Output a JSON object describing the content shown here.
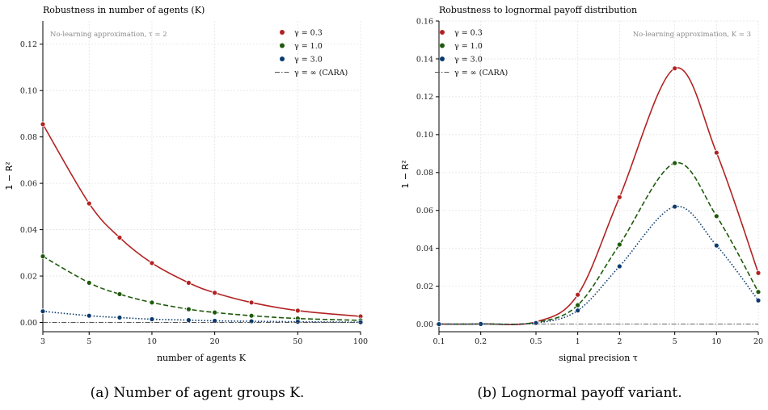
{
  "chart_data": [
    {
      "type": "line",
      "title": "Robustness in number of agents (K)",
      "xlabel": "number of agents K",
      "ylabel": "1 − R²",
      "xscale": "log",
      "xlim": [
        3,
        100
      ],
      "ylim": [
        -0.004,
        0.13
      ],
      "xticks": [
        3,
        5,
        10,
        20,
        50,
        100
      ],
      "xtick_labels": [
        "3",
        "5",
        "10",
        "20",
        "50",
        "100"
      ],
      "yticks": [
        0,
        0.02,
        0.04,
        0.06,
        0.08,
        0.1,
        0.12
      ],
      "ytick_labels": [
        "0.00",
        "0.02",
        "0.04",
        "0.06",
        "0.08",
        "0.10",
        "0.12"
      ],
      "annotation": "No-learning approximation, τ = 2",
      "legend_position": "top-right",
      "grid": true,
      "caption": "(a) Number of agent groups K.",
      "x": [
        3,
        5,
        7,
        10,
        15,
        20,
        30,
        50,
        100
      ],
      "series": [
        {
          "name": "γ = 0.3",
          "color": "#b22222",
          "style": "solid",
          "values": [
            0.0855,
            0.0513,
            0.0366,
            0.0256,
            0.0171,
            0.0128,
            0.0086,
            0.0051,
            0.0026
          ]
        },
        {
          "name": "γ = 1.0",
          "color": "#1e5a0c",
          "style": "dashed",
          "values": [
            0.0285,
            0.0171,
            0.0122,
            0.0086,
            0.0057,
            0.0043,
            0.0029,
            0.0017,
            0.0009
          ]
        },
        {
          "name": "γ = 3.0",
          "color": "#0b3a6e",
          "style": "dotted",
          "values": [
            0.0048,
            0.0029,
            0.0021,
            0.0014,
            0.001,
            0.0007,
            0.0005,
            0.0003,
            0.0001
          ]
        },
        {
          "name": "γ = ∞ (CARA)",
          "color": "#555555",
          "style": "dashdot",
          "values": [
            0,
            0,
            0,
            0,
            0,
            0,
            0,
            0,
            0
          ]
        }
      ]
    },
    {
      "type": "line",
      "title": "Robustness to lognormal payoff distribution",
      "xlabel": "signal precision τ",
      "ylabel": "1 − R²",
      "xscale": "log",
      "xlim": [
        0.1,
        20
      ],
      "ylim": [
        -0.004,
        0.16
      ],
      "xticks": [
        0.1,
        0.2,
        0.5,
        1,
        2,
        5,
        10,
        20
      ],
      "xtick_labels": [
        "0.1",
        "0.2",
        "0.5",
        "1",
        "2",
        "5",
        "10",
        "20"
      ],
      "yticks": [
        0,
        0.02,
        0.04,
        0.06,
        0.08,
        0.1,
        0.12,
        0.14,
        0.16
      ],
      "ytick_labels": [
        "0.00",
        "0.02",
        "0.04",
        "0.06",
        "0.08",
        "0.10",
        "0.12",
        "0.14",
        "0.16"
      ],
      "annotation": "No-learning approximation, K = 3",
      "legend_position": "top-left",
      "grid": true,
      "caption": "(b) Lognormal payoff variant.",
      "x": [
        0.1,
        0.2,
        0.5,
        1,
        2,
        5,
        10,
        20
      ],
      "series": [
        {
          "name": "γ = 0.3",
          "color": "#b22222",
          "style": "solid",
          "values": [
            0.0,
            0.0001,
            0.0012,
            0.0155,
            0.067,
            0.135,
            0.0905,
            0.027
          ]
        },
        {
          "name": "γ = 1.0",
          "color": "#1e5a0c",
          "style": "dashed",
          "values": [
            0.0,
            0.0001,
            0.0009,
            0.01,
            0.042,
            0.085,
            0.057,
            0.017
          ]
        },
        {
          "name": "γ = 3.0",
          "color": "#0b3a6e",
          "style": "dotted",
          "values": [
            0.0,
            0.0001,
            0.0006,
            0.0072,
            0.0305,
            0.062,
            0.0415,
            0.0125
          ]
        },
        {
          "name": "γ = ∞ (CARA)",
          "color": "#555555",
          "style": "dashdot",
          "values": [
            0,
            0,
            0,
            0,
            0,
            0,
            0,
            0
          ]
        }
      ]
    }
  ]
}
